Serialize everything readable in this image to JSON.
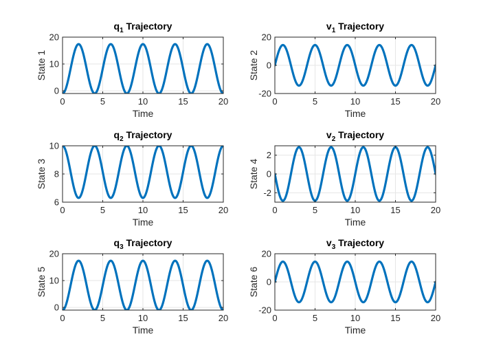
{
  "figure": {
    "background": "#ffffff",
    "line_color": "#0072bd",
    "grid_color": "#e6e6e6",
    "axis_color": "#262626"
  },
  "chart_data": [
    {
      "type": "line",
      "title": "q1 Trajectory",
      "title_main": "q",
      "title_sub": "1",
      "title_rest": " Trajectory",
      "xlabel": "Time",
      "ylabel": "State 1",
      "xlim": [
        0,
        20
      ],
      "ylim": [
        -1,
        20
      ],
      "xticks": [
        0,
        5,
        10,
        15,
        20
      ],
      "yticks": [
        0,
        10,
        20
      ],
      "grid": true,
      "series": [
        {
          "function": "cosine",
          "offset": 8.2,
          "amplitude": -9.2,
          "period": 4.0,
          "phase": 0,
          "t_range": [
            0,
            20
          ],
          "color": "#0072bd"
        }
      ]
    },
    {
      "type": "line",
      "title": "v1 Trajectory",
      "title_main": "v",
      "title_sub": "1",
      "title_rest": " Trajectory",
      "xlabel": "Time",
      "ylabel": "State 2",
      "xlim": [
        0,
        20
      ],
      "ylim": [
        -20,
        20
      ],
      "xticks": [
        0,
        5,
        10,
        15,
        20
      ],
      "yticks": [
        -20,
        0,
        20
      ],
      "grid": true,
      "series": [
        {
          "function": "sine",
          "offset": 0,
          "amplitude": 14.4,
          "period": 4.0,
          "phase": 0,
          "t_range": [
            0,
            20
          ],
          "color": "#0072bd"
        }
      ]
    },
    {
      "type": "line",
      "title": "q2 Trajectory",
      "title_main": "q",
      "title_sub": "2",
      "title_rest": " Trajectory",
      "xlabel": "Time",
      "ylabel": "State 3",
      "xlim": [
        0,
        20
      ],
      "ylim": [
        6,
        10
      ],
      "xticks": [
        0,
        5,
        10,
        15,
        20
      ],
      "yticks": [
        6,
        8,
        10
      ],
      "grid": true,
      "series": [
        {
          "function": "cosine",
          "offset": 8.15,
          "amplitude": 1.85,
          "period": 4.0,
          "phase": 0,
          "t_range": [
            0,
            20
          ],
          "color": "#0072bd"
        }
      ]
    },
    {
      "type": "line",
      "title": "v2 Trajectory",
      "title_main": "v",
      "title_sub": "2",
      "title_rest": " Trajectory",
      "xlabel": "Time",
      "ylabel": "State 4",
      "xlim": [
        0,
        20
      ],
      "ylim": [
        -3,
        3
      ],
      "xticks": [
        0,
        5,
        10,
        15,
        20
      ],
      "yticks": [
        -2,
        0,
        2
      ],
      "grid": true,
      "series": [
        {
          "function": "sine",
          "offset": 0,
          "amplitude": -2.85,
          "period": 4.0,
          "phase": 0,
          "t_range": [
            0,
            20
          ],
          "color": "#0072bd"
        }
      ]
    },
    {
      "type": "line",
      "title": "q3 Trajectory",
      "title_main": "q",
      "title_sub": "3",
      "title_rest": " Trajectory",
      "xlabel": "Time",
      "ylabel": "State 5",
      "xlim": [
        0,
        20
      ],
      "ylim": [
        -1,
        20
      ],
      "xticks": [
        0,
        5,
        10,
        15,
        20
      ],
      "yticks": [
        0,
        10,
        20
      ],
      "grid": true,
      "series": [
        {
          "function": "cosine",
          "offset": 8.2,
          "amplitude": -9.2,
          "period": 4.0,
          "phase": 0,
          "t_range": [
            0,
            20
          ],
          "color": "#0072bd"
        }
      ]
    },
    {
      "type": "line",
      "title": "v3 Trajectory",
      "title_main": "v",
      "title_sub": "3",
      "title_rest": " Trajectory",
      "xlabel": "Time",
      "ylabel": "State 6",
      "xlim": [
        0,
        20
      ],
      "ylim": [
        -20,
        20
      ],
      "xticks": [
        0,
        5,
        10,
        15,
        20
      ],
      "yticks": [
        -20,
        0,
        20
      ],
      "grid": true,
      "series": [
        {
          "function": "sine",
          "offset": 0,
          "amplitude": 14.4,
          "period": 4.0,
          "phase": 0,
          "t_range": [
            0,
            20
          ],
          "color": "#0072bd"
        }
      ]
    }
  ]
}
